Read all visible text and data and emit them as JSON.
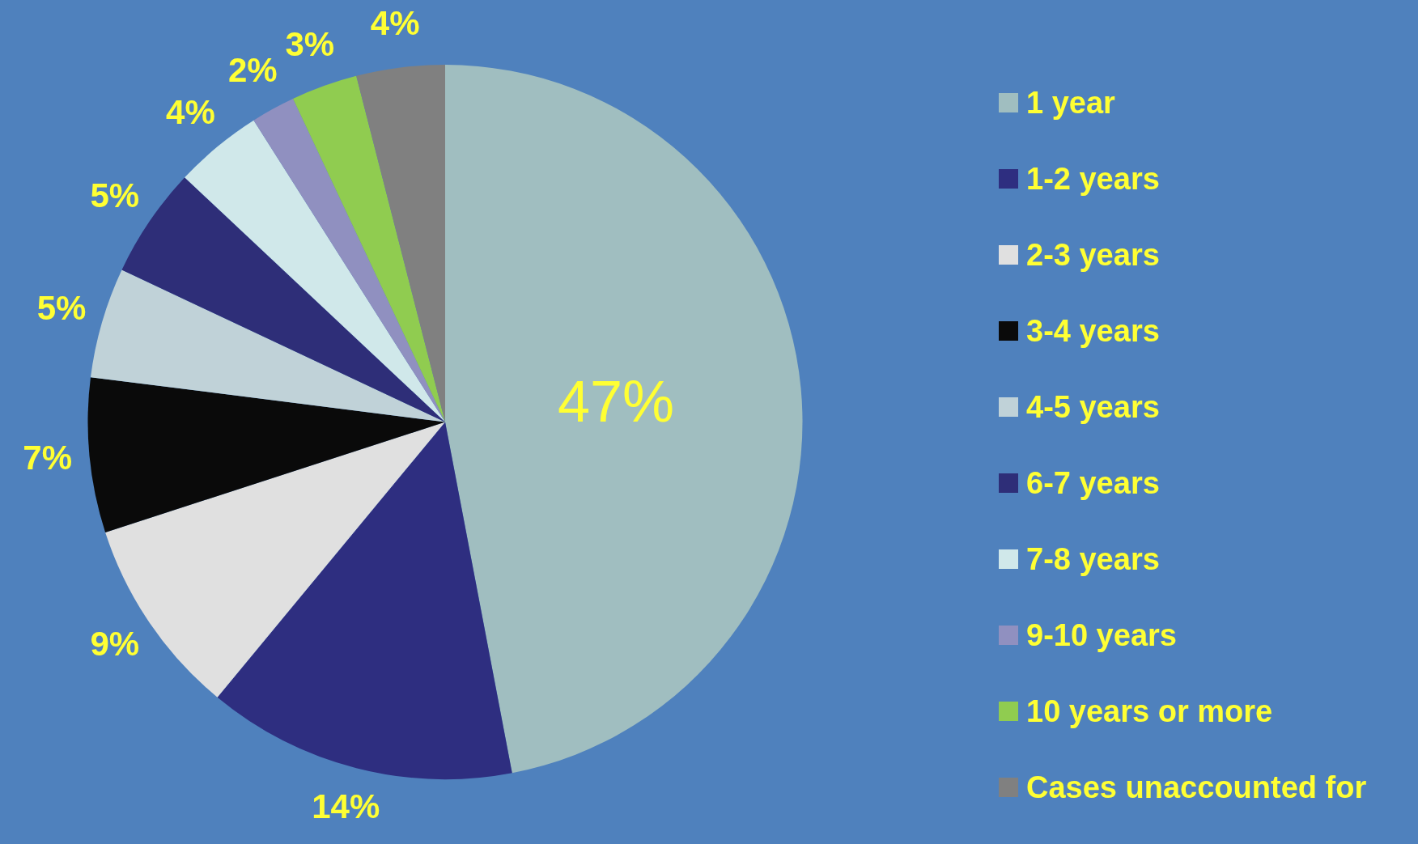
{
  "chart_data": {
    "type": "pie",
    "categories": [
      "1 year",
      "1-2 years",
      "2-3 years",
      "3-4 years",
      "4-5 years",
      "6-7 years",
      "7-8 years",
      "9-10 years",
      "10 years or more",
      "Cases unaccounted for"
    ],
    "values": [
      47,
      14,
      9,
      7,
      5,
      5,
      4,
      2,
      3,
      4
    ],
    "value_labels": [
      "47%",
      "14%",
      "9%",
      "7%",
      "5%",
      "5%",
      "4%",
      "2%",
      "3%",
      "4%"
    ],
    "colors": [
      "#a0bec0",
      "#2e2e80",
      "#e0e0e0",
      "#0a0a0a",
      "#c0d2d8",
      "#2e2e78",
      "#d0e8ea",
      "#9090c0",
      "#90cc50",
      "#808080"
    ],
    "legend": "right"
  }
}
